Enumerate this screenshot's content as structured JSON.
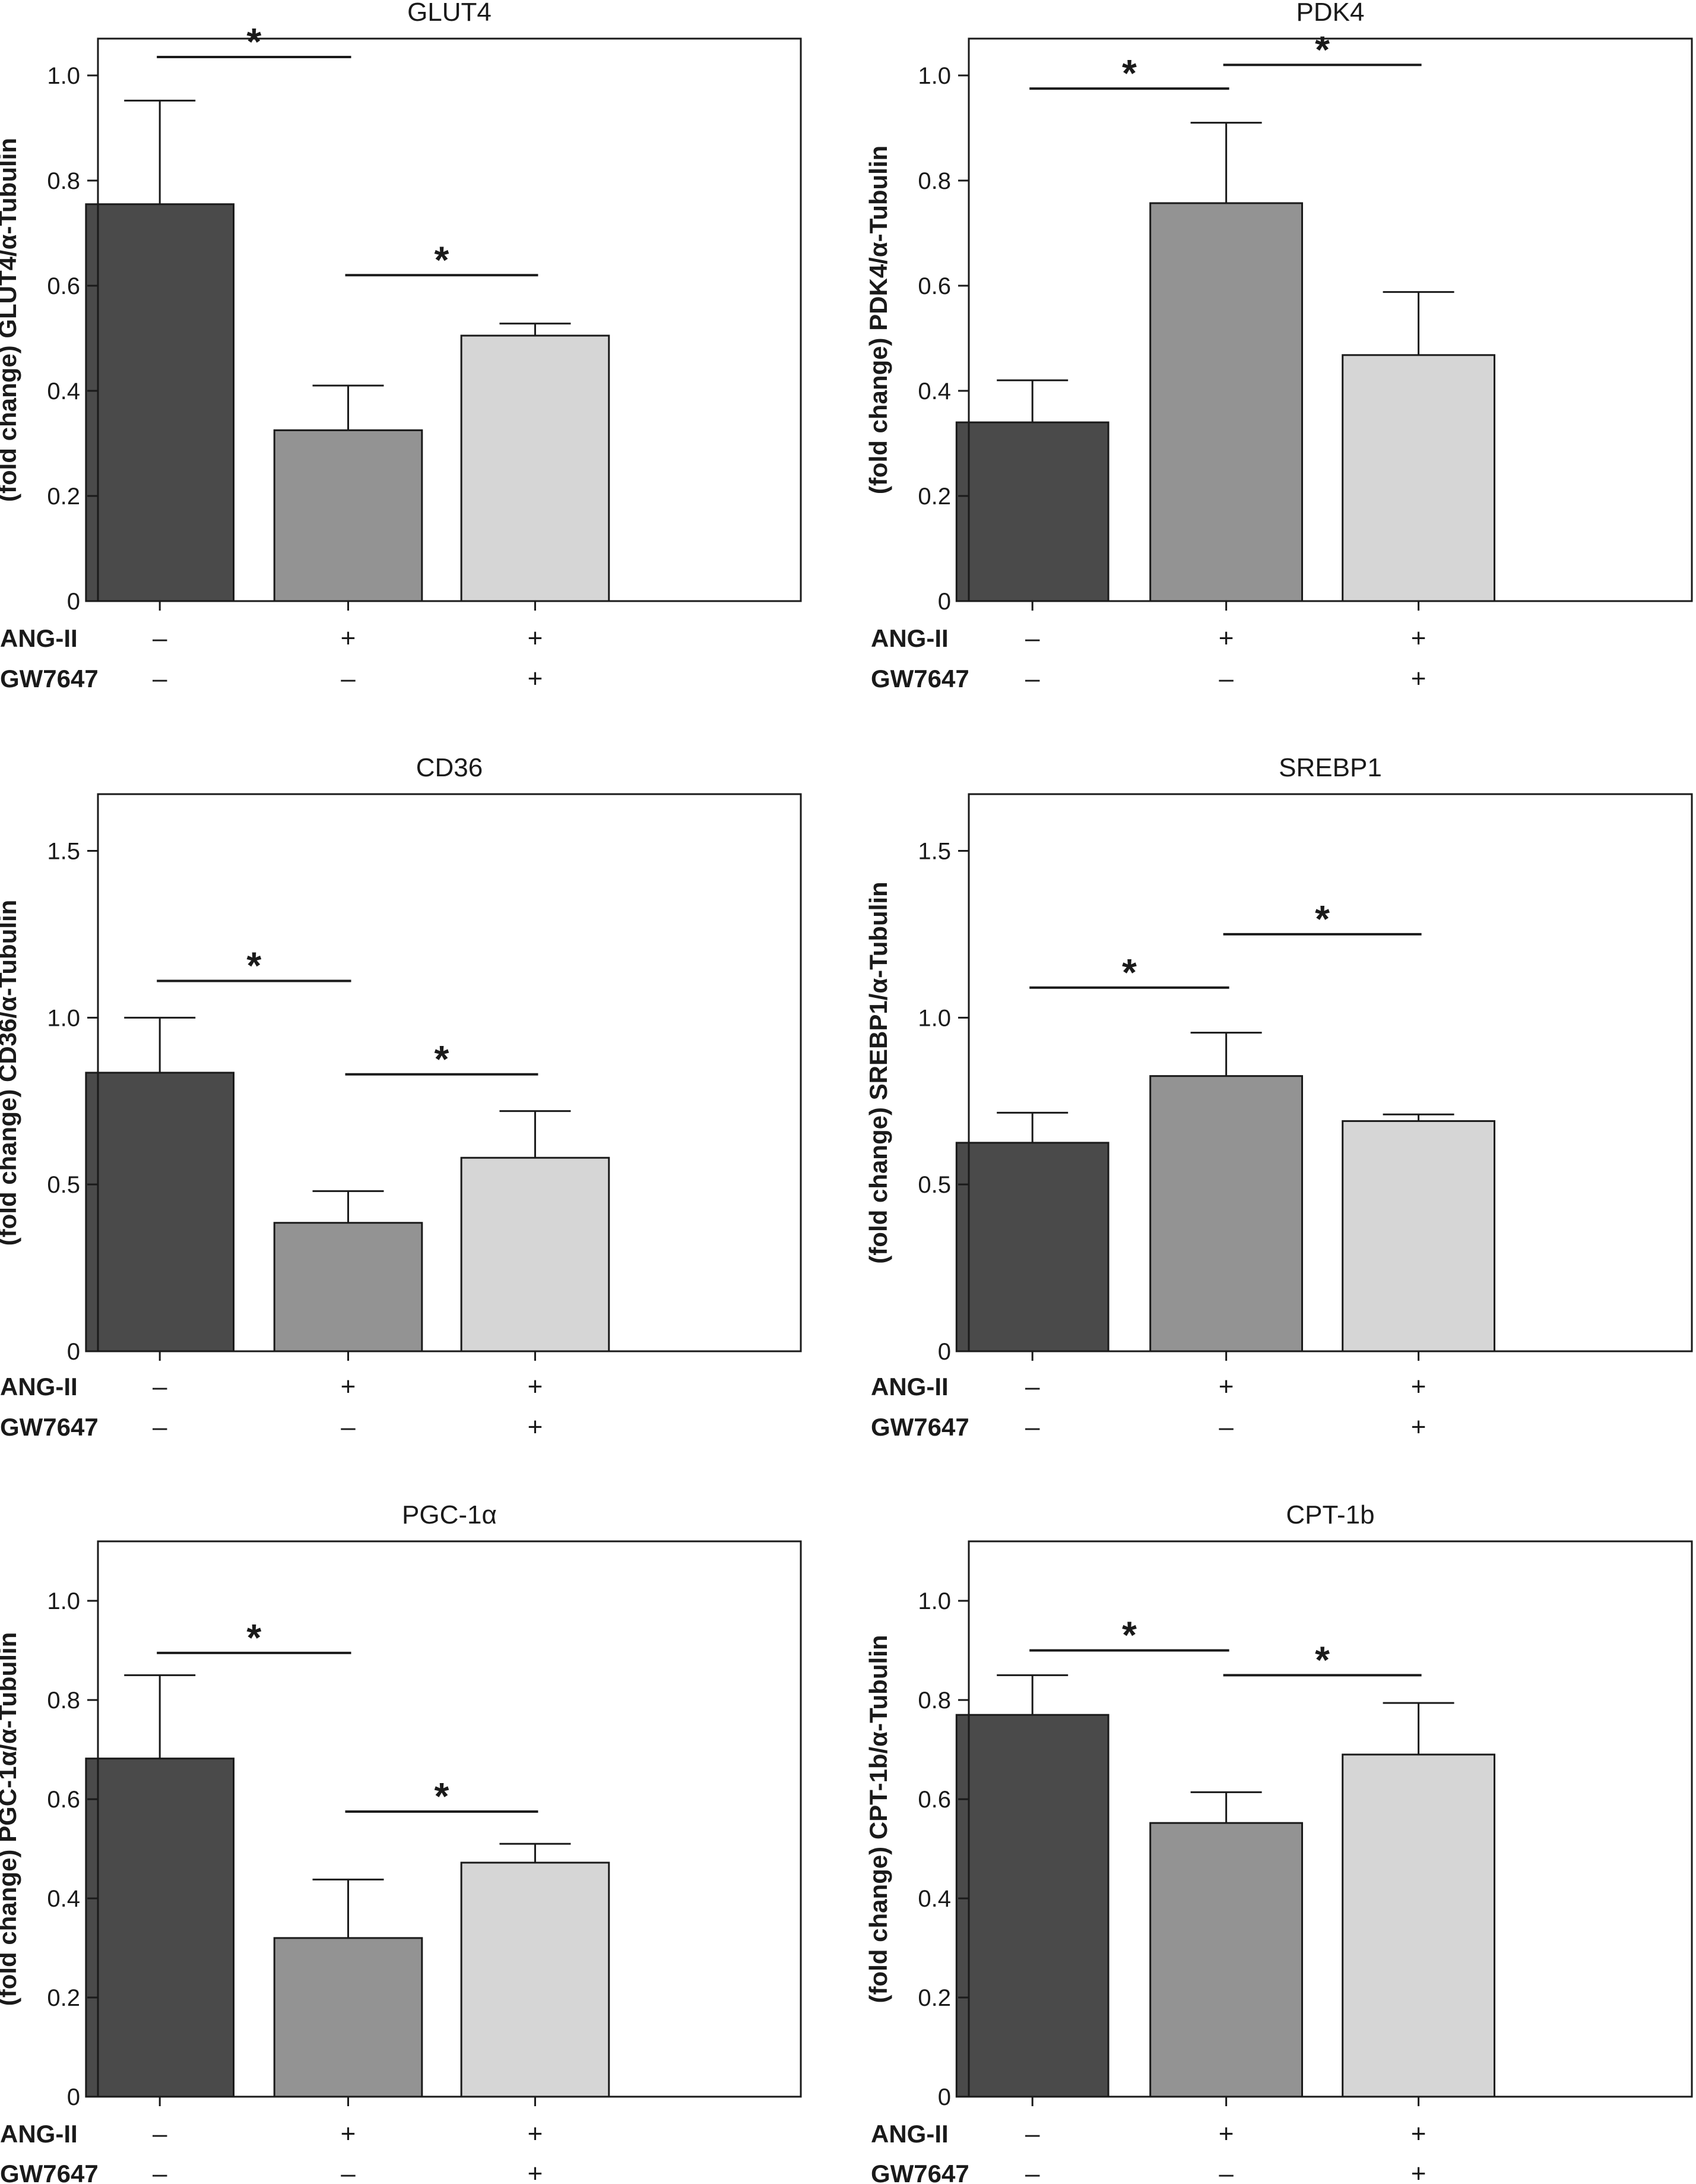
{
  "figure": {
    "condition_rows": [
      {
        "label": "ANG-II",
        "values": [
          "–",
          "+",
          "+"
        ]
      },
      {
        "label": "GW7647",
        "values": [
          "–",
          "–",
          "+"
        ]
      }
    ],
    "bar_colors": [
      "#4a4a4a",
      "#939393",
      "#d6d6d6"
    ],
    "axis_color": "#1a1a1a"
  },
  "chart_data": [
    {
      "type": "bar",
      "title": "GLUT4",
      "ylabel": "(fold change) GLUT4/α-Tubulin",
      "ylim": [
        0,
        1.07
      ],
      "yticks": [
        0,
        0.2,
        0.4,
        0.6,
        0.8,
        1.0
      ],
      "ytick_labels": [
        "0",
        "0.2",
        "0.4",
        "0.6",
        "0.8",
        "1.0"
      ],
      "values": [
        0.755,
        0.325,
        0.505
      ],
      "errors": [
        0.197,
        0.085,
        0.023
      ],
      "significance": [
        {
          "from": 0,
          "to": 1,
          "y": 1.035,
          "label": "*"
        },
        {
          "from": 1,
          "to": 2,
          "y": 0.62,
          "label": "*"
        }
      ]
    },
    {
      "type": "bar",
      "title": "PDK4",
      "ylabel": "(fold change) PDK4/α-Tubulin",
      "ylim": [
        0,
        1.07
      ],
      "yticks": [
        0,
        0.2,
        0.4,
        0.6,
        0.8,
        1.0
      ],
      "ytick_labels": [
        "0",
        "0.2",
        "0.4",
        "0.6",
        "0.8",
        "1.0"
      ],
      "values": [
        0.34,
        0.757,
        0.468
      ],
      "errors": [
        0.08,
        0.153,
        0.12
      ],
      "significance": [
        {
          "from": 0,
          "to": 1,
          "y": 0.975,
          "label": "*"
        },
        {
          "from": 1,
          "to": 2,
          "y": 1.02,
          "label": "*"
        }
      ]
    },
    {
      "type": "bar",
      "title": "CD36",
      "ylabel": "(fold change) CD36/α-Tubulin",
      "ylim": [
        0,
        1.67
      ],
      "yticks": [
        0,
        0.5,
        1.0,
        1.5
      ],
      "ytick_labels": [
        "0",
        "0.5",
        "1.0",
        "1.5"
      ],
      "values": [
        0.835,
        0.385,
        0.58
      ],
      "errors": [
        0.165,
        0.095,
        0.14
      ],
      "significance": [
        {
          "from": 0,
          "to": 1,
          "y": 1.11,
          "label": "*"
        },
        {
          "from": 1,
          "to": 2,
          "y": 0.83,
          "label": "*"
        }
      ]
    },
    {
      "type": "bar",
      "title": "SREBP1",
      "ylabel": "(fold change) SREBP1/α-Tubulin",
      "ylim": [
        0,
        1.67
      ],
      "yticks": [
        0,
        0.5,
        1.0,
        1.5
      ],
      "ytick_labels": [
        "0",
        "0.5",
        "1.0",
        "1.5"
      ],
      "values": [
        0.625,
        0.825,
        0.69
      ],
      "errors": [
        0.09,
        0.13,
        0.02
      ],
      "significance": [
        {
          "from": 0,
          "to": 1,
          "y": 1.09,
          "label": "*"
        },
        {
          "from": 1,
          "to": 2,
          "y": 1.25,
          "label": "*"
        }
      ]
    },
    {
      "type": "bar",
      "title": "PGC-1α",
      "ylabel": "(fold change) PGC-1α/α-Tubulin",
      "ylim": [
        0,
        1.12
      ],
      "yticks": [
        0,
        0.2,
        0.4,
        0.6,
        0.8,
        1.0
      ],
      "ytick_labels": [
        "0",
        "0.2",
        "0.4",
        "0.6",
        "0.8",
        "1.0"
      ],
      "values": [
        0.682,
        0.32,
        0.472
      ],
      "errors": [
        0.168,
        0.118,
        0.038
      ],
      "significance": [
        {
          "from": 0,
          "to": 1,
          "y": 0.895,
          "label": "*"
        },
        {
          "from": 1,
          "to": 2,
          "y": 0.575,
          "label": "*"
        }
      ]
    },
    {
      "type": "bar",
      "title": "CPT-1b",
      "ylabel": "(fold change) CPT-1b/α-Tubulin",
      "ylim": [
        0,
        1.12
      ],
      "yticks": [
        0,
        0.2,
        0.4,
        0.6,
        0.8,
        1.0
      ],
      "ytick_labels": [
        "0",
        "0.2",
        "0.4",
        "0.6",
        "0.8",
        "1.0"
      ],
      "values": [
        0.77,
        0.552,
        0.69
      ],
      "errors": [
        0.08,
        0.062,
        0.104
      ],
      "significance": [
        {
          "from": 0,
          "to": 1,
          "y": 0.9,
          "label": "*"
        },
        {
          "from": 1,
          "to": 2,
          "y": 0.85,
          "label": "*"
        }
      ]
    }
  ]
}
